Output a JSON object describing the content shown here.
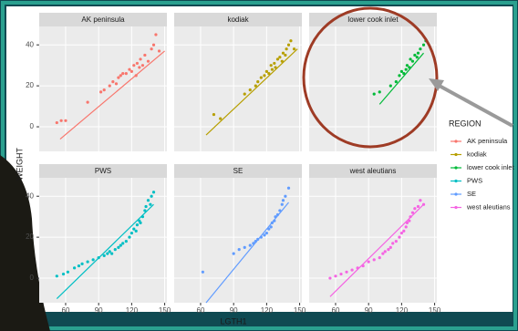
{
  "chart_data": [
    {
      "type": "scatter",
      "title": "AK peninsula",
      "series": [
        {
          "name": "AK peninsula",
          "color": "#F8766D",
          "x": [
            52,
            56,
            60,
            80,
            92,
            95,
            100,
            103,
            106,
            108,
            110,
            112,
            115,
            118,
            120,
            122,
            124,
            125,
            127,
            128,
            130,
            132,
            135,
            138,
            140,
            142,
            145
          ],
          "values": [
            2,
            3,
            3,
            12,
            17,
            18,
            20,
            22,
            21,
            24,
            25,
            26,
            26,
            28,
            27,
            30,
            25,
            31,
            29,
            33,
            30,
            35,
            32,
            38,
            40,
            45,
            37
          ]
        }
      ],
      "fit": {
        "x": [
          55,
          150
        ],
        "values": [
          -6,
          37
        ]
      }
    },
    {
      "type": "scatter",
      "title": "kodiak",
      "series": [
        {
          "name": "kodiak",
          "color": "#B79F00",
          "x": [
            72,
            78,
            100,
            105,
            110,
            112,
            115,
            118,
            120,
            122,
            124,
            125,
            127,
            128,
            130,
            132,
            134,
            135,
            137,
            138,
            140,
            142,
            145
          ],
          "values": [
            6,
            4,
            16,
            18,
            20,
            22,
            24,
            25,
            27,
            26,
            30,
            28,
            31,
            29,
            33,
            34,
            32,
            36,
            35,
            38,
            40,
            42,
            38
          ]
        }
      ],
      "fit": {
        "x": [
          65,
          148
        ],
        "values": [
          -4,
          38
        ]
      }
    },
    {
      "type": "scatter",
      "title": "lower cook inlet",
      "series": [
        {
          "name": "lower cook inlet",
          "color": "#00BA38",
          "x": [
            95,
            100,
            110,
            115,
            118,
            120,
            122,
            124,
            125,
            127,
            128,
            130,
            132,
            134,
            135,
            137,
            140,
            142
          ],
          "values": [
            16,
            17,
            20,
            22,
            25,
            27,
            26,
            28,
            30,
            29,
            33,
            32,
            35,
            34,
            36,
            38,
            40,
            42
          ]
        }
      ],
      "fit": {
        "x": [
          100,
          140
        ],
        "values": [
          11,
          36
        ]
      }
    },
    {
      "type": "scatter",
      "title": "PWS",
      "series": [
        {
          "name": "PWS",
          "color": "#00BFC4",
          "x": [
            52,
            58,
            62,
            68,
            72,
            75,
            80,
            85,
            90,
            95,
            98,
            100,
            102,
            105,
            108,
            110,
            112,
            115,
            118,
            120,
            122,
            124,
            125,
            127,
            128,
            130,
            132,
            133,
            135,
            137,
            138,
            140
          ],
          "values": [
            1,
            2,
            3,
            5,
            6,
            7,
            8,
            9,
            10,
            11,
            12,
            13,
            12,
            14,
            15,
            16,
            17,
            18,
            20,
            22,
            24,
            23,
            26,
            28,
            27,
            30,
            33,
            35,
            38,
            36,
            40,
            42
          ]
        }
      ],
      "fit": {
        "x": [
          52,
          140
        ],
        "values": [
          -10,
          36
        ]
      }
    },
    {
      "type": "scatter",
      "title": "SE",
      "series": [
        {
          "name": "SE",
          "color": "#619CFF",
          "x": [
            62,
            90,
            95,
            100,
            105,
            108,
            110,
            112,
            115,
            118,
            120,
            122,
            124,
            125,
            127,
            128,
            130,
            132,
            134,
            135,
            137,
            140
          ],
          "values": [
            3,
            12,
            14,
            15,
            16,
            17,
            18,
            19,
            20,
            21,
            22,
            24,
            25,
            27,
            28,
            30,
            31,
            33,
            36,
            38,
            40,
            44
          ]
        }
      ],
      "fit": {
        "x": [
          65,
          140
        ],
        "values": [
          -12,
          37
        ]
      }
    },
    {
      "type": "scatter",
      "title": "west aleutians",
      "series": [
        {
          "name": "west aleutians",
          "color": "#F564E3",
          "x": [
            55,
            60,
            65,
            70,
            75,
            80,
            85,
            90,
            95,
            100,
            103,
            105,
            108,
            110,
            112,
            115,
            118,
            120,
            122,
            124,
            125,
            127,
            128,
            130,
            132,
            135,
            137,
            140
          ],
          "values": [
            0,
            1,
            2,
            3,
            4,
            5,
            6,
            8,
            9,
            10,
            12,
            13,
            14,
            15,
            17,
            18,
            20,
            22,
            23,
            25,
            27,
            28,
            30,
            32,
            34,
            35,
            38,
            36
          ]
        }
      ],
      "fit": {
        "x": [
          55,
          140
        ],
        "values": [
          -9,
          36
        ]
      }
    }
  ],
  "axes": {
    "x_label": "LGTH1",
    "y_label": "WEIGHT",
    "xlim": [
      36,
      152
    ],
    "ylim": [
      -12,
      49
    ],
    "xticks": [
      60,
      90,
      120,
      150
    ],
    "yticks": [
      0,
      20,
      40
    ]
  },
  "legend": {
    "title": "REGION"
  }
}
